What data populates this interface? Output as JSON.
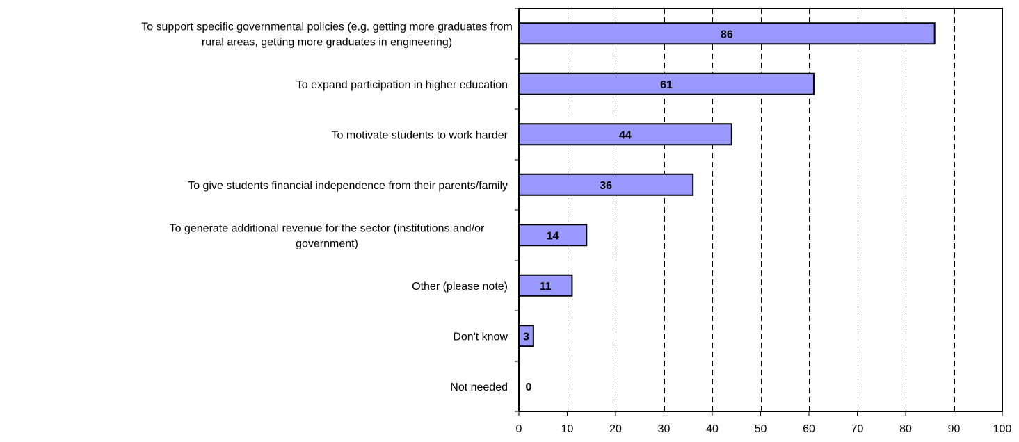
{
  "chart_data": {
    "type": "bar",
    "orientation": "horizontal",
    "categories": [
      [
        "To support specific governmental policies (e.g. getting more graduates from",
        "rural areas, getting more graduates in engineering)"
      ],
      [
        "To expand participation in higher education"
      ],
      [
        "To motivate students to work harder"
      ],
      [
        "To give students financial independence from their parents/family"
      ],
      [
        "To generate additional revenue for the sector (institutions and/or",
        "government)"
      ],
      [
        "Other (please note)"
      ],
      [
        "Don't know"
      ],
      [
        "Not needed"
      ]
    ],
    "values": [
      86,
      61,
      44,
      36,
      14,
      11,
      3,
      0
    ],
    "data_labels": [
      "86",
      "61",
      "44",
      "36",
      "14",
      "11",
      "3",
      "0"
    ],
    "xlim": [
      0,
      100
    ],
    "xticks": [
      "0",
      "10",
      "20",
      "30",
      "40",
      "50",
      "60",
      "70",
      "80",
      "90",
      "100"
    ],
    "grid": "vertical dashed",
    "bar_color": "#9999ff",
    "bar_edge_color": "#000000",
    "title": "",
    "xlabel": "",
    "ylabel": ""
  }
}
